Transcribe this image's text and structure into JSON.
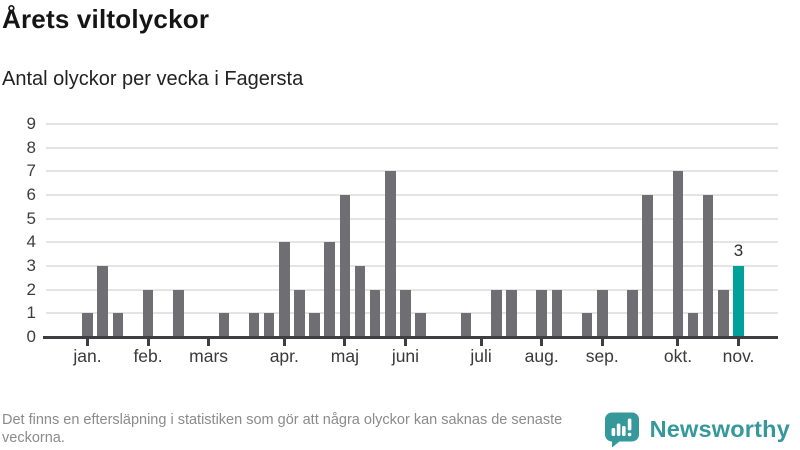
{
  "chart_data": {
    "type": "bar",
    "title": "Årets viltolyckor",
    "subtitle": "Antal olyckor per vecka i Fagersta",
    "values": [
      1,
      3,
      1,
      0,
      2,
      0,
      2,
      0,
      0,
      1,
      0,
      1,
      1,
      4,
      2,
      1,
      4,
      6,
      3,
      2,
      7,
      2,
      1,
      0,
      0,
      1,
      0,
      2,
      2,
      0,
      2,
      2,
      0,
      1,
      2,
      0,
      2,
      6,
      0,
      7,
      1,
      6,
      2,
      3
    ],
    "x_is_weeks": "weeks 1-44 of the year, one bar per week",
    "months": [
      {
        "label": "jan.",
        "week": 1
      },
      {
        "label": "feb.",
        "week": 5
      },
      {
        "label": "mars",
        "week": 9
      },
      {
        "label": "apr.",
        "week": 14
      },
      {
        "label": "maj",
        "week": 18
      },
      {
        "label": "juni",
        "week": 22
      },
      {
        "label": "juli",
        "week": 27
      },
      {
        "label": "aug.",
        "week": 31
      },
      {
        "label": "sep.",
        "week": 35
      },
      {
        "label": "okt.",
        "week": 40
      },
      {
        "label": "nov.",
        "week": 44
      }
    ],
    "yticks": [
      0,
      1,
      2,
      3,
      4,
      5,
      6,
      7,
      8,
      9
    ],
    "ylim": [
      0,
      9
    ],
    "grid": true,
    "legend": false,
    "highlight": {
      "index": 44,
      "value": 3,
      "label": "3",
      "color": "#00a09b"
    },
    "bar_color": "#6e6e73",
    "grid_color": "#e4e4e4",
    "axis_color": "#3d3d42"
  },
  "footer": {
    "note": "Det finns en eftersläpning i statistiken som gör att några olyckor kan saknas de senaste veckorna.",
    "brand": "Newsworthy",
    "brand_color": "#35989b"
  }
}
